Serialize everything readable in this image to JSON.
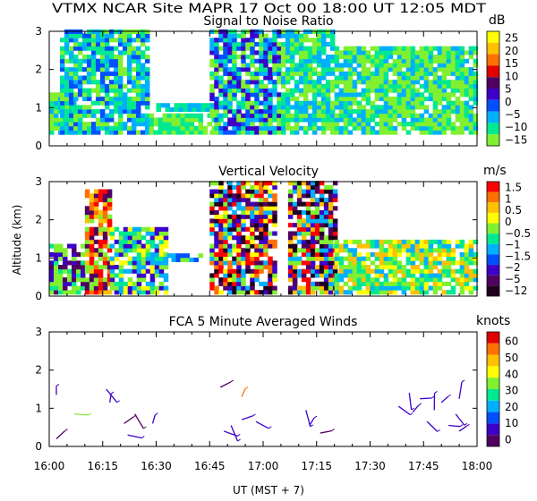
{
  "header": {
    "title": "VTMX   NCAR Site   MAPR 17 Oct 00   18:00 UT   12:05   MDT"
  },
  "xaxis": {
    "label": "UT  (MST + 7)",
    "ticks": [
      "16:00",
      "16:15",
      "16:30",
      "16:45",
      "17:00",
      "17:15",
      "17:30",
      "17:45",
      "18:00"
    ]
  },
  "yaxis": {
    "label": "Altitude (km)",
    "ticks": [
      "0",
      "1",
      "2",
      "3"
    ]
  },
  "panels": [
    {
      "title": "Signal to Noise Ratio",
      "unit": "dB",
      "colorbar": {
        "labels": [
          "25",
          "20",
          "15",
          "10",
          "5",
          "0",
          "−5",
          "−10",
          "−15"
        ],
        "colors": [
          "#ffff00",
          "#ffc000",
          "#ff7000",
          "#e00000",
          "#500060",
          "#3c00c8",
          "#0050ff",
          "#00b0ff",
          "#00e890",
          "#80f030"
        ]
      }
    },
    {
      "title": "Vertical Velocity",
      "unit": "m/s",
      "colorbar": {
        "labels": [
          "1.5",
          "1",
          "0.5",
          "0",
          "−0.5",
          "−1",
          "−1.5",
          "−2",
          "−5",
          "−12"
        ],
        "colors": [
          "#ff0000",
          "#ff7000",
          "#ffc000",
          "#ffff00",
          "#80f030",
          "#00e890",
          "#00b0ff",
          "#0050ff",
          "#3c00c8",
          "#500060",
          "#200020"
        ]
      }
    },
    {
      "title": "FCA 5 Minute Averaged Winds",
      "unit": "knots",
      "colorbar": {
        "labels": [
          "60",
          "50",
          "40",
          "30",
          "20",
          "10",
          "0"
        ],
        "colors": [
          "#e00000",
          "#ff7000",
          "#ffc000",
          "#ffff00",
          "#80f030",
          "#00e890",
          "#00b0ff",
          "#0050ff",
          "#3c00c8",
          "#500060"
        ]
      }
    }
  ],
  "chart_data": [
    {
      "type": "heatmap",
      "title": "Signal to Noise Ratio",
      "ylabel": "Altitude (km)",
      "xlabel": "UT  (MST + 7)",
      "x_range": [
        "16:00",
        "18:00"
      ],
      "y_range": [
        0,
        3
      ],
      "units": "dB",
      "colorbar_levels": [
        -15,
        -10,
        -5,
        0,
        5,
        10,
        15,
        20,
        25
      ]
    },
    {
      "type": "heatmap",
      "title": "Vertical Velocity",
      "ylabel": "Altitude (km)",
      "xlabel": "UT  (MST + 7)",
      "x_range": [
        "16:00",
        "18:00"
      ],
      "y_range": [
        0,
        3
      ],
      "units": "m/s",
      "colorbar_levels": [
        -12,
        -5,
        -2,
        -1.5,
        -1,
        -0.5,
        0,
        0.5,
        1,
        1.5
      ]
    },
    {
      "type": "scatter",
      "title": "FCA 5 Minute Averaged Winds",
      "ylabel": "Altitude (km)",
      "xlabel": "UT  (MST + 7)",
      "x_range": [
        "16:00",
        "18:00"
      ],
      "y_range": [
        0,
        3
      ],
      "units": "knots",
      "colorbar_levels": [
        0,
        10,
        20,
        30,
        40,
        50,
        60
      ],
      "barbs": [
        {
          "t": "16:02",
          "alt": 1.35,
          "speed": 8
        },
        {
          "t": "16:02",
          "alt": 0.2,
          "speed": 5
        },
        {
          "t": "16:07",
          "alt": 0.85,
          "speed": 35
        },
        {
          "t": "16:16",
          "alt": 1.5,
          "speed": 10
        },
        {
          "t": "16:17",
          "alt": 1.15,
          "speed": 8
        },
        {
          "t": "16:21",
          "alt": 0.6,
          "speed": 5
        },
        {
          "t": "16:22",
          "alt": 0.3,
          "speed": 8
        },
        {
          "t": "16:24",
          "alt": 0.85,
          "speed": 5
        },
        {
          "t": "16:29",
          "alt": 0.6,
          "speed": 10
        },
        {
          "t": "16:48",
          "alt": 1.55,
          "speed": 5
        },
        {
          "t": "16:49",
          "alt": 0.4,
          "speed": 10
        },
        {
          "t": "16:51",
          "alt": 0.55,
          "speed": 8
        },
        {
          "t": "16:54",
          "alt": 1.3,
          "speed": 55
        },
        {
          "t": "16:54",
          "alt": 0.7,
          "speed": 10
        },
        {
          "t": "16:58",
          "alt": 0.65,
          "speed": 8
        },
        {
          "t": "17:12",
          "alt": 0.95,
          "speed": 10
        },
        {
          "t": "17:13",
          "alt": 0.55,
          "speed": 8
        },
        {
          "t": "17:16",
          "alt": 0.35,
          "speed": 5
        },
        {
          "t": "17:38",
          "alt": 1.05,
          "speed": 10
        },
        {
          "t": "17:41",
          "alt": 1.4,
          "speed": 10
        },
        {
          "t": "17:42",
          "alt": 0.9,
          "speed": 10
        },
        {
          "t": "17:44",
          "alt": 1.25,
          "speed": 8
        },
        {
          "t": "17:46",
          "alt": 0.65,
          "speed": 12
        },
        {
          "t": "17:48",
          "alt": 0.95,
          "speed": 10
        },
        {
          "t": "17:50",
          "alt": 1.15,
          "speed": 8
        },
        {
          "t": "17:52",
          "alt": 0.55,
          "speed": 10
        },
        {
          "t": "17:54",
          "alt": 0.85,
          "speed": 8
        },
        {
          "t": "17:55",
          "alt": 1.25,
          "speed": 10
        },
        {
          "t": "17:55",
          "alt": 0.4,
          "speed": 8
        }
      ]
    }
  ]
}
